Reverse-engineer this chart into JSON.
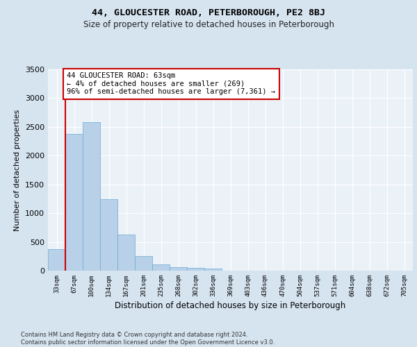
{
  "title": "44, GLOUCESTER ROAD, PETERBOROUGH, PE2 8BJ",
  "subtitle": "Size of property relative to detached houses in Peterborough",
  "xlabel": "Distribution of detached houses by size in Peterborough",
  "ylabel": "Number of detached properties",
  "categories": [
    "33sqm",
    "67sqm",
    "100sqm",
    "134sqm",
    "167sqm",
    "201sqm",
    "235sqm",
    "268sqm",
    "302sqm",
    "336sqm",
    "369sqm",
    "403sqm",
    "436sqm",
    "470sqm",
    "504sqm",
    "537sqm",
    "571sqm",
    "604sqm",
    "638sqm",
    "672sqm",
    "705sqm"
  ],
  "bar_values": [
    375,
    2380,
    2580,
    1240,
    630,
    255,
    110,
    60,
    50,
    35,
    0,
    0,
    0,
    0,
    0,
    0,
    0,
    0,
    0,
    0,
    0
  ],
  "bar_color": "#b8d0e8",
  "bar_edge_color": "#6aaad4",
  "background_color": "#d6e4f0",
  "plot_background": "#eaf2f8",
  "grid_color": "#ffffff",
  "vline_x": 0.5,
  "vline_color": "#cc0000",
  "annotation_text": "44 GLOUCESTER ROAD: 63sqm\n← 4% of detached houses are smaller (269)\n96% of semi-detached houses are larger (7,361) →",
  "annotation_box_color": "#ffffff",
  "annotation_border_color": "#cc0000",
  "ylim": [
    0,
    3500
  ],
  "yticks": [
    0,
    500,
    1000,
    1500,
    2000,
    2500,
    3000,
    3500
  ],
  "footer": "Contains HM Land Registry data © Crown copyright and database right 2024.\nContains public sector information licensed under the Open Government Licence v3.0.",
  "title_fontsize": 9.5,
  "subtitle_fontsize": 8.5
}
